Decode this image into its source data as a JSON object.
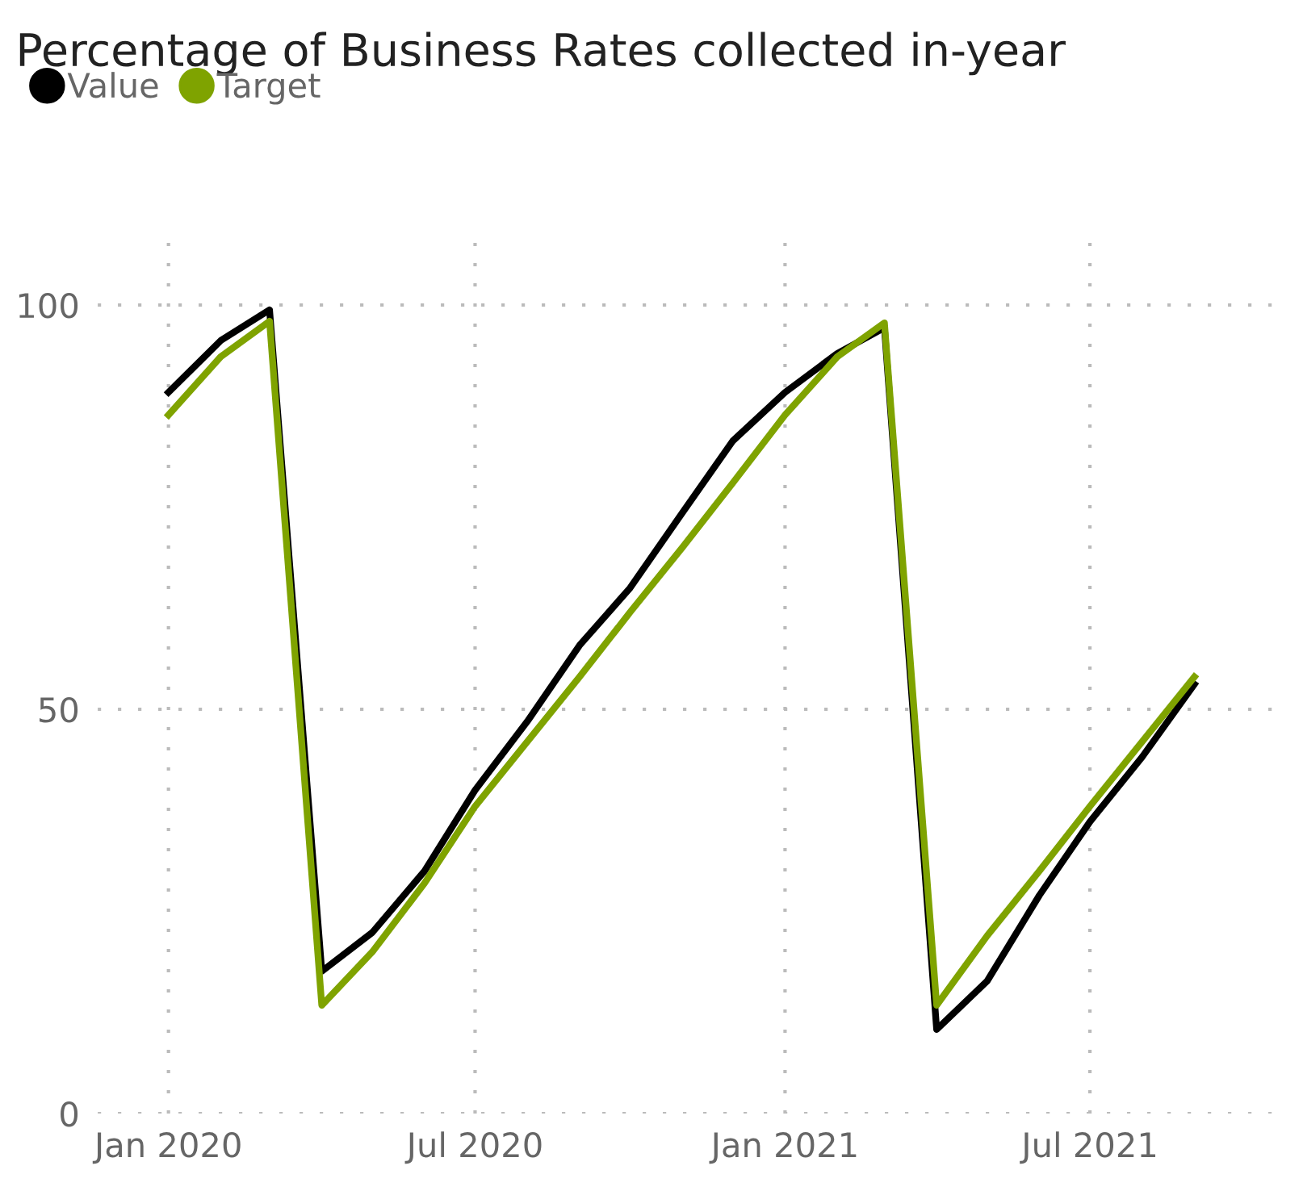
{
  "chart_data": {
    "type": "line",
    "title": "Percentage of Business Rates collected in-year",
    "x": [
      "2020-01",
      "2020-02",
      "2020-03",
      "2020-04",
      "2020-05",
      "2020-06",
      "2020-07",
      "2020-08",
      "2020-09",
      "2020-10",
      "2020-11",
      "2020-12",
      "2021-01",
      "2021-02",
      "2021-03",
      "2021-04",
      "2021-05",
      "2021-06",
      "2021-07",
      "2021-08",
      "2021-09"
    ],
    "series": [
      {
        "name": "Value",
        "color": "#000000",
        "values": [
          89.2,
          95.6,
          99.4,
          17.6,
          22.4,
          30,
          40,
          48.5,
          57.9,
          65,
          74.3,
          83.2,
          89.2,
          94,
          97.2,
          10.4,
          16.4,
          27,
          36.1,
          44.1,
          53.1
        ]
      },
      {
        "name": "Target",
        "color": "#7fa300",
        "values": [
          86.4,
          93.6,
          98,
          13.4,
          20,
          28.5,
          38,
          46,
          54,
          62,
          70,
          78,
          86.4,
          93.6,
          97.8,
          13.4,
          22,
          30,
          38,
          46,
          54
        ]
      }
    ],
    "xlim": [
      "2019-11-20",
      "2021-10-20"
    ],
    "xticks": [
      {
        "value": "2020-01",
        "label": "Jan 2020"
      },
      {
        "value": "2020-07",
        "label": "Jul 2020"
      },
      {
        "value": "2021-01",
        "label": "Jan 2021"
      },
      {
        "value": "2021-07",
        "label": "Jul 2021"
      }
    ],
    "ylim": [
      0,
      109
    ],
    "yticks": [
      0,
      50,
      100
    ],
    "grid": true,
    "legend": "top left",
    "marker": "none",
    "line_style": "solid"
  }
}
